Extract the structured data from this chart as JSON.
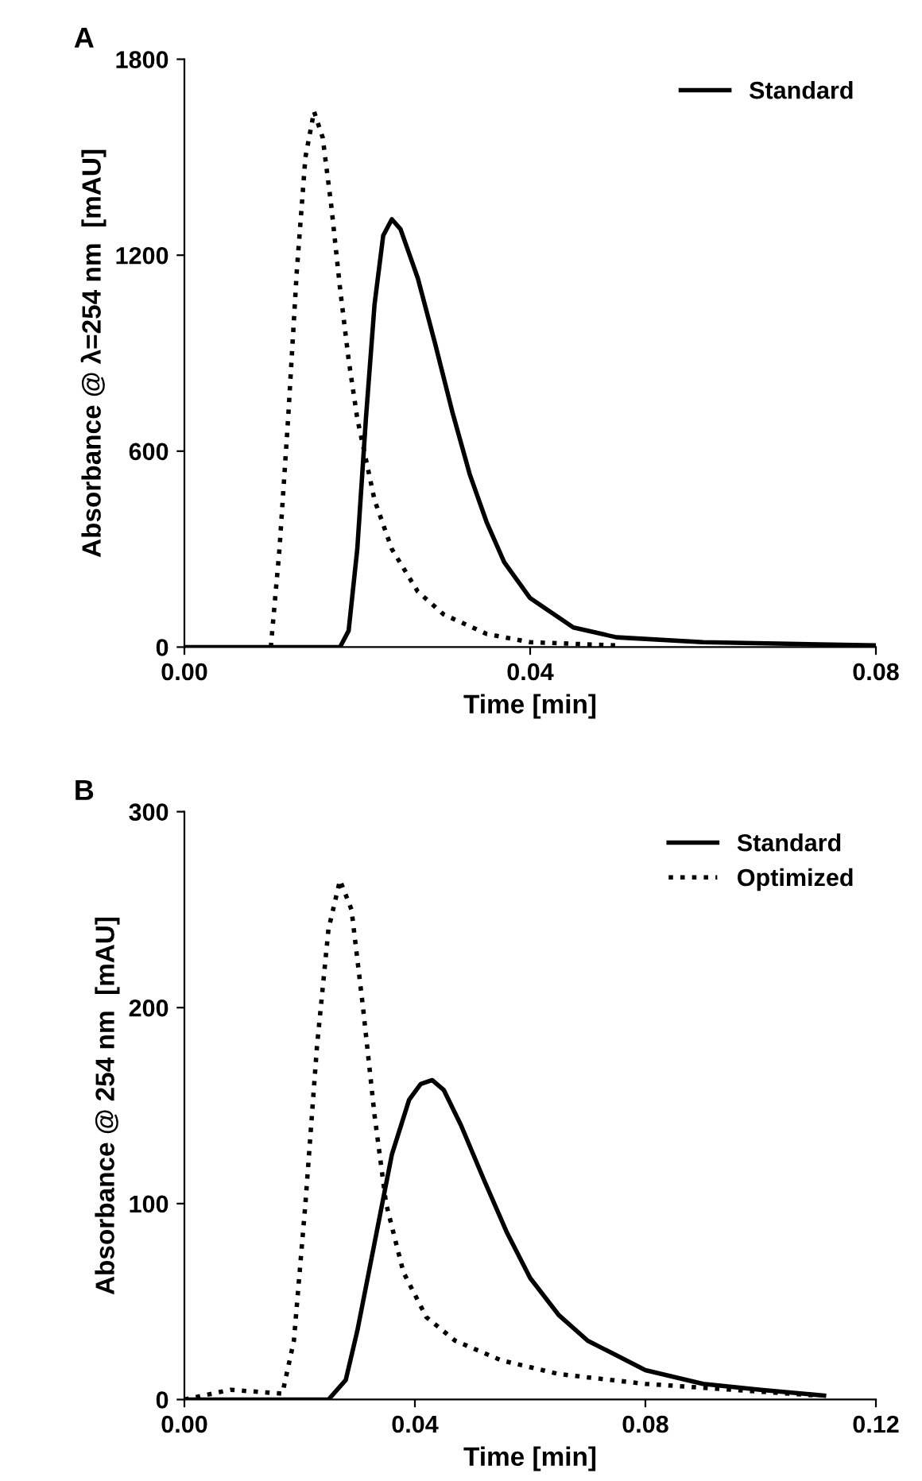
{
  "chart_data": [
    {
      "type": "line",
      "annotations": [
        "A"
      ],
      "xlabel": "Time [min]",
      "ylabel": "Absorbance @ λ=254 nm  [mAU]",
      "xlim": [
        0,
        0.08
      ],
      "xticks": [
        {
          "value": 0,
          "label": "0.00"
        },
        0.04,
        0.08
      ],
      "ylim": [
        0,
        1800
      ],
      "yticks": [
        0,
        600,
        1200,
        1800
      ],
      "legend": "top right",
      "grid": false,
      "marker": "none",
      "series": [
        {
          "name": "Standard",
          "color": "#000000",
          "line_style": "solid",
          "x": [
            0,
            0.018,
            0.019,
            0.02,
            0.021,
            0.022,
            0.023,
            0.024,
            0.025,
            0.027,
            0.029,
            0.031,
            0.033,
            0.035,
            0.037,
            0.04,
            0.045,
            0.05,
            0.06,
            0.08
          ],
          "values": [
            0,
            0,
            50,
            300,
            700,
            1050,
            1260,
            1310,
            1280,
            1130,
            930,
            720,
            530,
            380,
            260,
            150,
            60,
            30,
            15,
            5
          ]
        },
        {
          "color": "#000000",
          "line_style": "dotted",
          "x": [
            0.01,
            0.011,
            0.012,
            0.013,
            0.014,
            0.015,
            0.016,
            0.017,
            0.018,
            0.019,
            0.02,
            0.022,
            0.024,
            0.027,
            0.03,
            0.035,
            0.04,
            0.05
          ],
          "values": [
            0,
            300,
            700,
            1150,
            1500,
            1640,
            1560,
            1350,
            1100,
            880,
            700,
            450,
            300,
            170,
            100,
            40,
            15,
            5
          ]
        }
      ]
    },
    {
      "type": "line",
      "annotations": [
        "B"
      ],
      "xlabel": "Time [min]",
      "ylabel": "Absorbance @ 254 nm  [mAU]",
      "xlim": [
        0,
        0.12
      ],
      "xticks": [
        {
          "value": 0,
          "label": "0.00"
        },
        0.04,
        0.08,
        0.12
      ],
      "ylim": [
        0,
        300
      ],
      "yticks": [
        0,
        100,
        200,
        300
      ],
      "legend": "top right",
      "grid": false,
      "marker": "none",
      "series": [
        {
          "name": "Standard",
          "color": "#000000",
          "line_style": "solid",
          "x": [
            0,
            0.025,
            0.028,
            0.03,
            0.033,
            0.036,
            0.039,
            0.041,
            0.043,
            0.045,
            0.048,
            0.052,
            0.056,
            0.06,
            0.065,
            0.07,
            0.08,
            0.09,
            0.1,
            0.111
          ],
          "values": [
            0,
            0,
            10,
            35,
            80,
            125,
            153,
            161,
            163,
            158,
            140,
            112,
            85,
            62,
            43,
            30,
            15,
            8,
            5,
            2
          ]
        },
        {
          "name": "Optimized",
          "color": "#000000",
          "line_style": "dotted",
          "x": [
            0,
            0.008,
            0.017,
            0.019,
            0.021,
            0.023,
            0.025,
            0.027,
            0.029,
            0.031,
            0.033,
            0.035,
            0.038,
            0.042,
            0.047,
            0.055,
            0.065,
            0.08,
            0.1,
            0.11
          ],
          "values": [
            0,
            5,
            3,
            30,
            100,
            180,
            240,
            265,
            250,
            200,
            145,
            100,
            65,
            42,
            30,
            20,
            13,
            8,
            4,
            2
          ]
        }
      ]
    }
  ]
}
